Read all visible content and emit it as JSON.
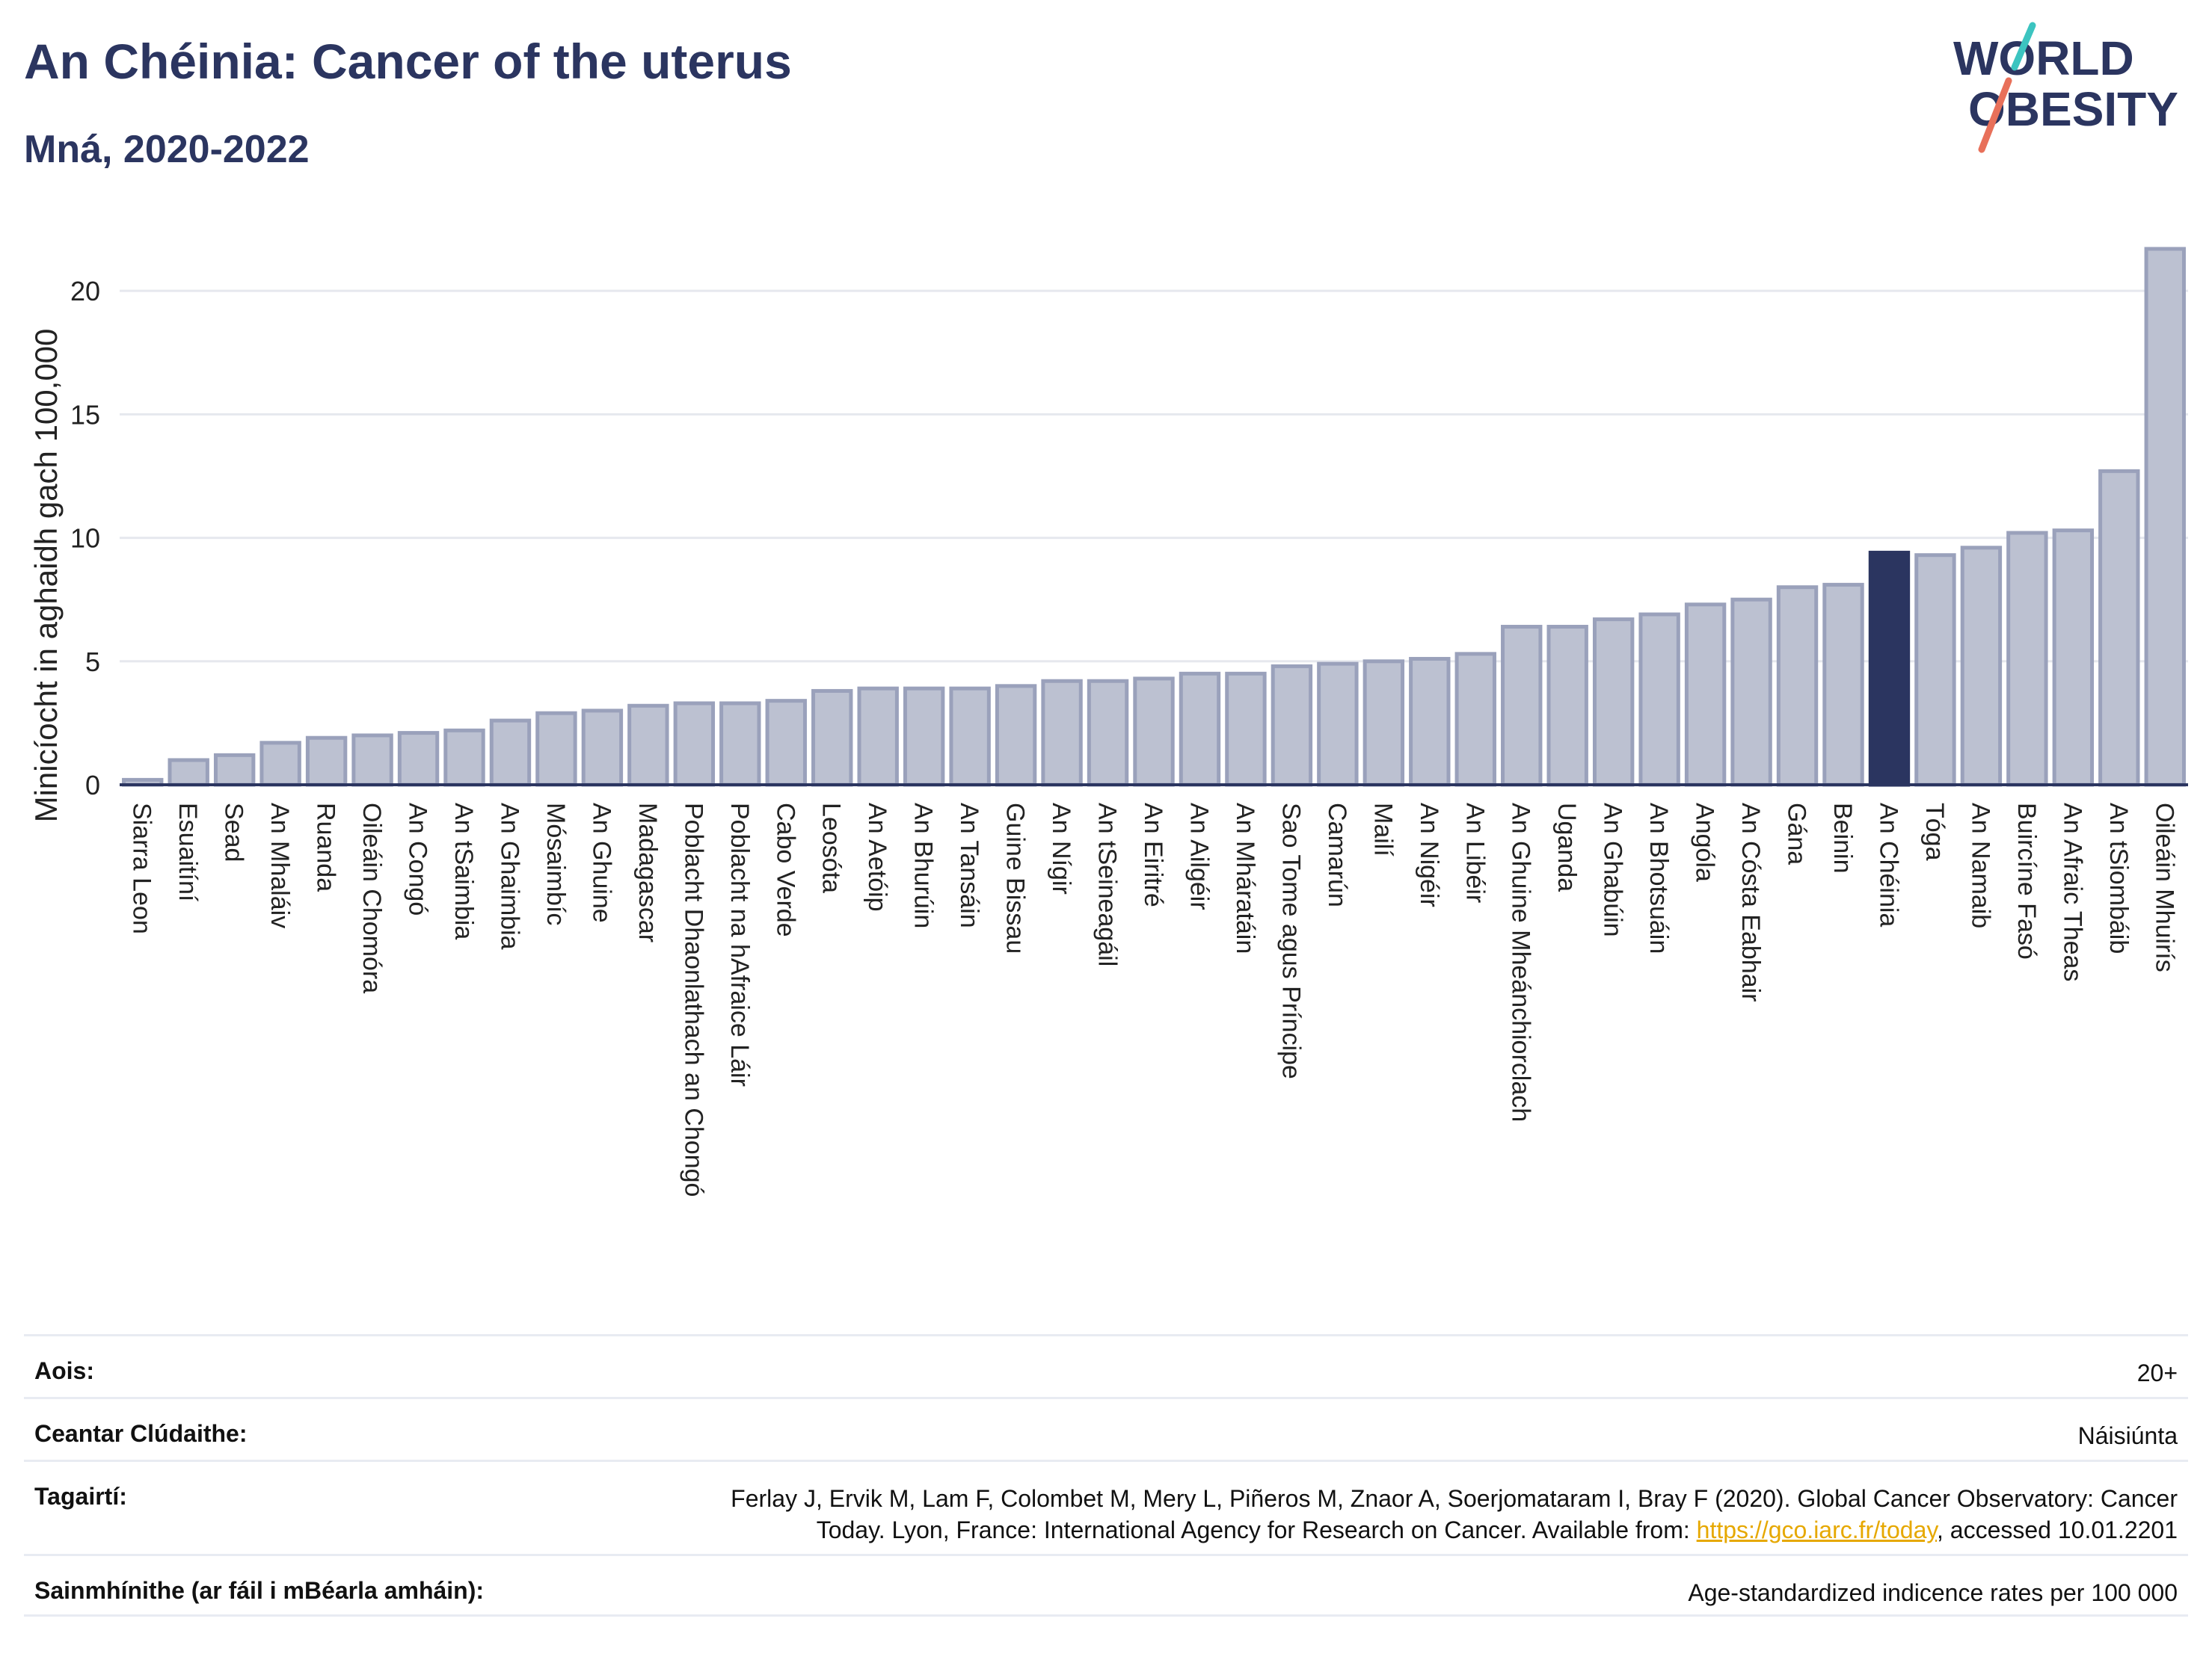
{
  "header": {
    "title": "An Chéinia: Cancer of the uterus",
    "subtitle": "Mná, 2020-2022"
  },
  "logo": {
    "line1": "WORLD",
    "line2": "OBESITY",
    "colors": {
      "text": "#2b3560",
      "slash_top": "#3cc4c0",
      "slash_bottom": "#e8705a"
    }
  },
  "colors": {
    "bar_fill": "#bcc1d1",
    "bar_stroke": "#9aa1bb",
    "highlight_fill": "#2b3560",
    "grid": "#e6e8ee",
    "axis": "#2b3560"
  },
  "chart_data": {
    "type": "bar",
    "ylabel": "Minicíocht in aghaidh gach 100,000",
    "ylim": [
      0,
      23
    ],
    "yticks": [
      0,
      5,
      10,
      15,
      20
    ],
    "grid": true,
    "highlight": "An Chéinia",
    "categories": [
      "Siarra Leon",
      "Esuaitíní",
      "Sead",
      "An Mhaláiv",
      "Ruanda",
      "Oileáin Chomóra",
      "An Congó",
      "An tSaimbia",
      "An Ghaimbia",
      "Mósaimbíc",
      "An Ghuine",
      "Madagascar",
      "Poblacht Dhaonlathach an Chongó",
      "Poblacht na hAfraice Láir",
      "Cabo Verde",
      "Leosóta",
      "An Aetóip",
      "An Bhurúin",
      "An Tansáin",
      "Guine Bissau",
      "An Nígir",
      "An tSeineagáil",
      "An Eiritré",
      "An Ailgéir",
      "An Mháratáin",
      "Sao Tome agus Príncipe",
      "Camarún",
      "Mailí",
      "An Nigéir",
      "An Libéir",
      "An Ghuine Mheánchiorclach",
      "Uganda",
      "An Ghabúin",
      "An Bhotsuáin",
      "Angóla",
      "An Cósta Eabhair",
      "Gána",
      "Beinin",
      "An Chéinia",
      "Tóga",
      "An Namaib",
      "Buircíne Fasó",
      "An Afraic Theas",
      "An tSiombáib",
      "Oileáin Mhuirís"
    ],
    "values": [
      0.2,
      1.0,
      1.2,
      1.7,
      1.9,
      2.0,
      2.1,
      2.2,
      2.6,
      2.9,
      3.0,
      3.2,
      3.3,
      3.3,
      3.4,
      3.8,
      3.9,
      3.9,
      3.9,
      4.0,
      4.2,
      4.2,
      4.3,
      4.5,
      4.5,
      4.8,
      4.9,
      5.0,
      5.1,
      5.3,
      6.4,
      6.4,
      6.7,
      6.9,
      7.3,
      7.5,
      8.0,
      8.1,
      9.4,
      9.3,
      9.6,
      10.2,
      10.3,
      12.7,
      21.7
    ]
  },
  "info": {
    "age_label": "Aois:",
    "age_value": "20+",
    "coverage_label": "Ceantar Clúdaithe:",
    "coverage_value": "Náisiúnta",
    "refs_label": "Tagairtí:",
    "refs_line1": "Ferlay J, Ervik M, Lam F, Colombet M, Mery L, Piñeros M, Znaor A, Soerjomataram I, Bray F (2020). Global Cancer Observatory: Cancer",
    "refs_line2_pre": "Today. Lyon, France: International Agency for Research on Cancer. Available from: ",
    "refs_link": "https://gco.iarc.fr/today",
    "refs_line2_post": ", accessed 10.01.2201",
    "def_label": "Sainmhínithe (ar fáil i mBéarla amháin):",
    "def_value": "Age-standardized indicence rates per 100 000"
  }
}
